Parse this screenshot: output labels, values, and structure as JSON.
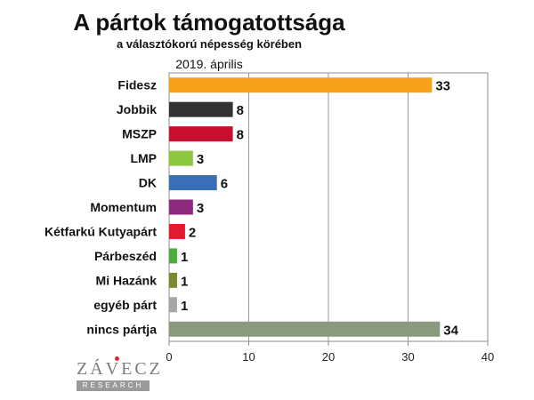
{
  "header": {
    "title": "A pártok támogatottsága",
    "subtitle": "a választókorú népesség körében",
    "date": "2019. április"
  },
  "logo": {
    "name": "ZÁVECZ",
    "sub": "RESEARCH"
  },
  "chart_data": {
    "type": "bar",
    "orientation": "horizontal",
    "categories": [
      "Fidesz",
      "Jobbik",
      "MSZP",
      "LMP",
      "DK",
      "Momentum",
      "Kétfarkú Kutyapárt",
      "Párbeszéd",
      "Mi Hazánk",
      "egyéb párt",
      "nincs pártja"
    ],
    "values": [
      33,
      8,
      8,
      3,
      6,
      3,
      2,
      1,
      1,
      1,
      34
    ],
    "colors": [
      "#f7a21b",
      "#333333",
      "#c8102e",
      "#8dc63f",
      "#3a6fb7",
      "#8e2a7e",
      "#e3192f",
      "#4cae3a",
      "#7a8a2e",
      "#a6a6a6",
      "#8a9a7e"
    ],
    "xlim": [
      0,
      40
    ],
    "xticks": [
      0,
      10,
      20,
      30,
      40
    ],
    "grid": true,
    "data_labels": true
  }
}
